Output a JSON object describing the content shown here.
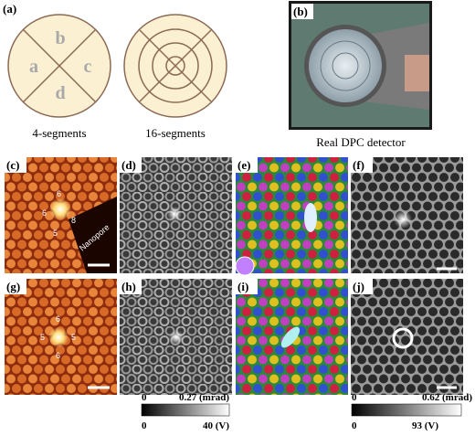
{
  "panels": {
    "a": {
      "label": "(a)",
      "segments": [
        "a",
        "b",
        "c",
        "d"
      ],
      "caption": "4-segments",
      "caption2": "16-segments"
    },
    "b": {
      "label": "(b)",
      "caption": "Real DPC detector"
    },
    "c": {
      "label": "(c)",
      "annotations": [
        "6",
        "6",
        "8",
        "5",
        "Nanopore"
      ]
    },
    "d": {
      "label": "(d)"
    },
    "e": {
      "label": "(e)"
    },
    "f": {
      "label": "(f)"
    },
    "g": {
      "label": "(g)",
      "annotations": [
        "6",
        "5",
        "5",
        "6"
      ]
    },
    "h": {
      "label": "(h)"
    },
    "i": {
      "label": "(i)"
    },
    "j": {
      "label": "(j)"
    }
  },
  "colorbars": [
    {
      "top_min": "0",
      "top_max": "0.27 (mrad)",
      "bottom_min": "0",
      "bottom_max": "40 (V)"
    },
    {
      "top_min": "0",
      "top_max": "0.62 (mrad)",
      "bottom_min": "0",
      "bottom_max": "93 (V)"
    }
  ]
}
